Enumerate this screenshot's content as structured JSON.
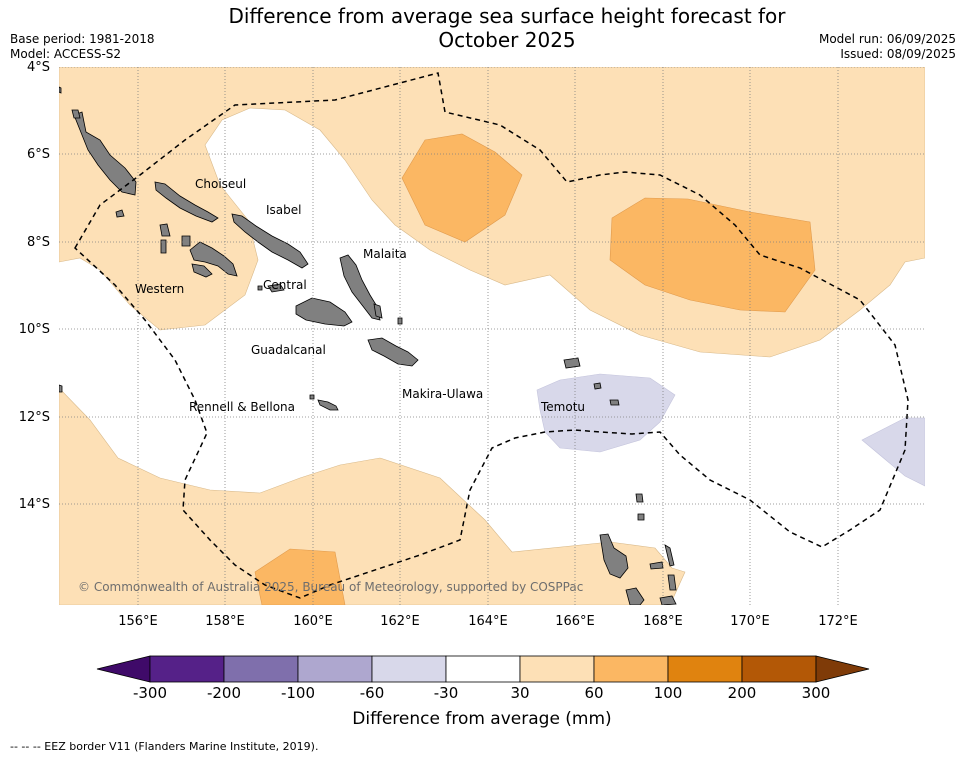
{
  "title": "Difference from average sea surface height forecast for October 2025",
  "title_line1": "Difference from average sea surface height forecast for",
  "title_line2": "October 2025",
  "base_period": "Base period: 1981-2018",
  "model": "Model: ACCESS-S2",
  "model_run": "Model run: 06/09/2025",
  "issued": "Issued: 08/09/2025",
  "lat_labels": [
    "4°S",
    "6°S",
    "8°S",
    "10°S",
    "12°S",
    "14°S"
  ],
  "lon_labels": [
    "156°E",
    "158°E",
    "160°E",
    "162°E",
    "164°E",
    "166°E",
    "168°E",
    "170°E",
    "172°E"
  ],
  "provinces": {
    "choiseul": "Choiseul",
    "isabel": "Isabel",
    "malaita": "Malaita",
    "central": "Central",
    "western": "Western",
    "guadalcanal": "Guadalcanal",
    "makira": "Makira-Ulawa",
    "rennell": "Rennell & Bellona",
    "temotu": "Temotu"
  },
  "copyright": "© Commonwealth of Australia 2025, Bureau of Meteorology, supported by COSPPac",
  "colorbar": {
    "labels": [
      "-300",
      "-200",
      "-100",
      "-60",
      "-30",
      "30",
      "60",
      "100",
      "200",
      "300"
    ],
    "colors": [
      "#3f0a69",
      "#552188",
      "#7f6fac",
      "#aea7cf",
      "#d8d8ea",
      "#ffffff",
      "#fde0b6",
      "#fbb763",
      "#e0830f",
      "#b35806",
      "#7f3b08"
    ],
    "title": "Difference from average (mm)"
  },
  "eez_note": "-- -- -- EEZ border V11 (Flanders Marine Institute, 2019).",
  "colors": {
    "land": "#808080",
    "light_orange": "#fde0b6",
    "mid_orange": "#fbb763",
    "light_purple": "#d8d8ea"
  }
}
